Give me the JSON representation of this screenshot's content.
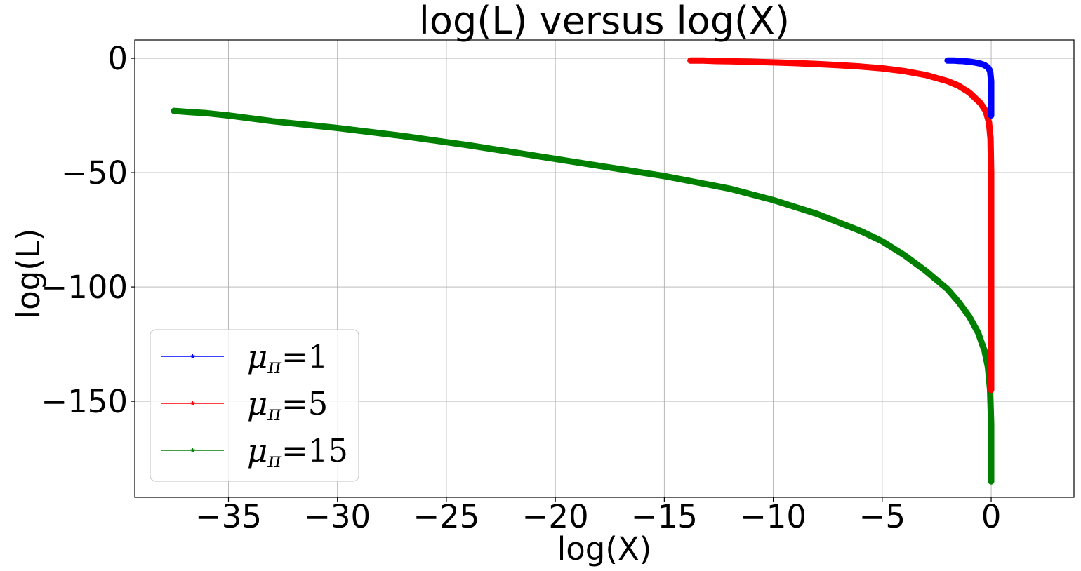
{
  "chart_data": {
    "type": "line",
    "title": "log(L) versus log(X)",
    "xlabel": "log(X)",
    "ylabel": "log(L)",
    "xlim": [
      -39.3,
      3.8
    ],
    "ylim": [
      -192,
      8
    ],
    "xticks": [
      -35,
      -30,
      -25,
      -20,
      -15,
      -10,
      -5,
      0
    ],
    "yticks": [
      0,
      -50,
      -100,
      -150
    ],
    "xtick_labels": [
      "−35",
      "−30",
      "−25",
      "−20",
      "−15",
      "−10",
      "−5",
      "0"
    ],
    "ytick_labels": [
      "0",
      "−50",
      "−100",
      "−150"
    ],
    "grid": true,
    "legend_position": "lower-left",
    "marker": "star",
    "series": [
      {
        "name": "μπ=1",
        "label_mu": "μ",
        "label_sub": "π",
        "label_value": "=1",
        "color": "#0000ff",
        "x": [
          -2.0,
          -1.7,
          -1.5,
          -1.3,
          -1.1,
          -0.9,
          -0.7,
          -0.5,
          -0.3,
          -0.15,
          -0.05,
          0.0,
          0.0,
          0.0
        ],
        "y": [
          -1.0,
          -1.0,
          -1.1,
          -1.2,
          -1.4,
          -1.6,
          -1.9,
          -2.3,
          -3.0,
          -4.0,
          -5.5,
          -10,
          -18,
          -25
        ]
      },
      {
        "name": "μπ=5",
        "label_mu": "μ",
        "label_sub": "π",
        "label_value": "=5",
        "color": "#ff0000",
        "x": [
          -13.8,
          -13.2,
          -12.6,
          -12.0,
          -11.0,
          -10.0,
          -9.0,
          -8.0,
          -7.0,
          -6.0,
          -5.0,
          -4.0,
          -3.0,
          -2.0,
          -1.5,
          -1.0,
          -0.5,
          -0.25,
          -0.1,
          -0.03,
          0.0,
          0.0,
          0.0,
          0.0
        ],
        "y": [
          -1.0,
          -1.0,
          -1.2,
          -1.3,
          -1.5,
          -1.8,
          -2.1,
          -2.5,
          -3.0,
          -3.6,
          -4.4,
          -5.6,
          -7.3,
          -10.0,
          -12.0,
          -15.0,
          -19.5,
          -23.0,
          -28.0,
          -35.0,
          -50.0,
          -80.0,
          -120.0,
          -145.0
        ]
      },
      {
        "name": "μπ=15",
        "label_mu": "μ",
        "label_sub": "π",
        "label_value": "=15",
        "color": "#008000",
        "x": [
          -37.5,
          -36.8,
          -36.0,
          -35.0,
          -33.0,
          -30.0,
          -27.0,
          -24.0,
          -21.0,
          -18.0,
          -15.0,
          -12.0,
          -10.0,
          -8.0,
          -6.0,
          -5.0,
          -4.0,
          -3.0,
          -2.0,
          -1.5,
          -1.0,
          -0.6,
          -0.3,
          -0.15,
          -0.05,
          0.0,
          0.0,
          0.0
        ],
        "y": [
          -23.0,
          -23.5,
          -24.0,
          -25.0,
          -27.5,
          -30.5,
          -34.0,
          -38.0,
          -42.5,
          -47.0,
          -51.5,
          -57.0,
          -62.0,
          -68.0,
          -75.5,
          -80.0,
          -86.0,
          -93.0,
          -101.0,
          -106.5,
          -113.0,
          -120.0,
          -128.0,
          -135.0,
          -145.0,
          -160.0,
          -175.0,
          -185.0
        ]
      }
    ]
  }
}
